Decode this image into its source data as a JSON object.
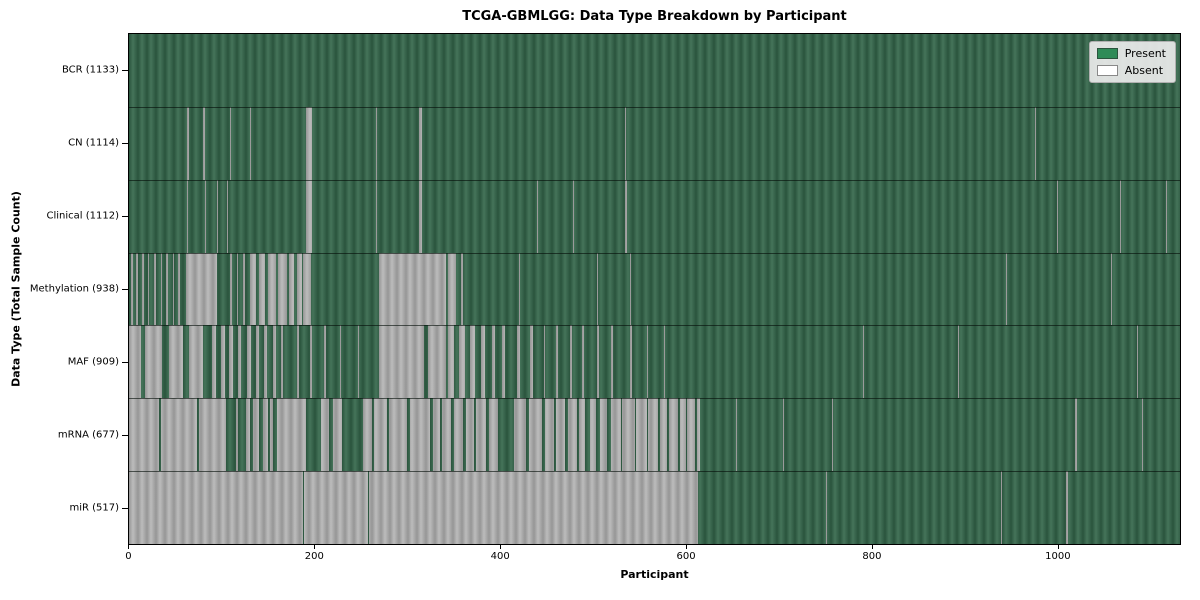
{
  "chart_data": {
    "type": "heatmap",
    "title": "TCGA-GBMLGG: Data Type Breakdown by Participant",
    "xlabel": "Participant",
    "ylabel": "Data Type (Total Sample Count)",
    "n_participants": 1133,
    "x_ticks": [
      0,
      200,
      400,
      600,
      800,
      1000
    ],
    "legend": [
      {
        "label": "Present",
        "color": "#2e8b57"
      },
      {
        "label": "Absent",
        "color": "#ffffff"
      }
    ],
    "colors": {
      "present": "#2e8b57",
      "absent": "#ffffff",
      "present_stripe_dark": "#2a543d",
      "present_stripe_light": "#45745a",
      "absent_stripe_dark": "#969696",
      "absent_stripe_light": "#bcbcbc"
    },
    "rows": [
      {
        "name": "BCR",
        "label": "BCR (1133)",
        "count": 1133,
        "runs": []
      },
      {
        "name": "CN",
        "label": "CN (1114)",
        "count": 1114,
        "runs": [
          [
            63,
            65,
            "A"
          ],
          [
            80,
            82,
            "A"
          ],
          [
            109,
            110,
            "A"
          ],
          [
            130,
            131,
            "A"
          ],
          [
            191,
            197,
            "A"
          ],
          [
            266,
            267,
            "A"
          ],
          [
            313,
            316,
            "A"
          ],
          [
            535,
            536,
            "A"
          ],
          [
            977,
            978,
            "A"
          ],
          [
            1056,
            1057,
            "A"
          ]
        ]
      },
      {
        "name": "Clinical",
        "label": "Clinical (1112)",
        "count": 1112,
        "runs": [
          [
            63,
            64,
            "A"
          ],
          [
            82,
            83,
            "A"
          ],
          [
            95,
            96,
            "A"
          ],
          [
            106,
            107,
            "A"
          ],
          [
            191,
            197,
            "A"
          ],
          [
            266,
            267,
            "A"
          ],
          [
            313,
            316,
            "A"
          ],
          [
            440,
            441,
            "A"
          ],
          [
            479,
            480,
            "A"
          ],
          [
            535,
            537,
            "A"
          ],
          [
            1000,
            1001,
            "A"
          ],
          [
            1068,
            1069,
            "A"
          ],
          [
            1118,
            1119,
            "A"
          ]
        ]
      },
      {
        "name": "Methylation",
        "label": "Methylation (938)",
        "count": 938,
        "runs": [
          [
            2,
            4,
            "A"
          ],
          [
            8,
            10,
            "A"
          ],
          [
            14,
            16,
            "A"
          ],
          [
            20,
            22,
            "A"
          ],
          [
            27,
            29,
            "A"
          ],
          [
            34,
            36,
            "A"
          ],
          [
            40,
            42,
            "A"
          ],
          [
            47,
            49,
            "A"
          ],
          [
            53,
            55,
            "A"
          ],
          [
            61,
            95,
            "A"
          ],
          [
            109,
            111,
            "A"
          ],
          [
            116,
            118,
            "A"
          ],
          [
            123,
            125,
            "A"
          ],
          [
            130,
            137,
            "A"
          ],
          [
            140,
            147,
            "A"
          ],
          [
            150,
            158,
            "A"
          ],
          [
            161,
            170,
            "A"
          ],
          [
            173,
            178,
            "A"
          ],
          [
            181,
            186,
            "A"
          ],
          [
            188,
            196,
            "A"
          ],
          [
            270,
            342,
            "A"
          ],
          [
            344,
            352,
            "A"
          ],
          [
            358,
            360,
            "A"
          ],
          [
            420,
            421,
            "A"
          ],
          [
            505,
            506,
            "A"
          ],
          [
            540,
            541,
            "A"
          ],
          [
            945,
            947,
            "A"
          ],
          [
            1059,
            1060,
            "A"
          ]
        ]
      },
      {
        "name": "MAF",
        "label": "MAF (909)",
        "count": 909,
        "runs": [
          [
            0,
            13,
            "A"
          ],
          [
            17,
            36,
            "A"
          ],
          [
            43,
            58,
            "A"
          ],
          [
            65,
            80,
            "A"
          ],
          [
            90,
            94,
            "A"
          ],
          [
            99,
            103,
            "A"
          ],
          [
            108,
            112,
            "A"
          ],
          [
            118,
            121,
            "A"
          ],
          [
            127,
            131,
            "A"
          ],
          [
            137,
            140,
            "A"
          ],
          [
            146,
            149,
            "A"
          ],
          [
            155,
            158,
            "A"
          ],
          [
            164,
            166,
            "A"
          ],
          [
            181,
            183,
            "A"
          ],
          [
            195,
            197,
            "A"
          ],
          [
            210,
            212,
            "A"
          ],
          [
            228,
            229,
            "A"
          ],
          [
            247,
            248,
            "A"
          ],
          [
            270,
            318,
            "A"
          ],
          [
            322,
            342,
            "A"
          ],
          [
            344,
            350,
            "A"
          ],
          [
            356,
            362,
            "A"
          ],
          [
            368,
            373,
            "A"
          ],
          [
            380,
            384,
            "A"
          ],
          [
            391,
            395,
            "A"
          ],
          [
            402,
            405,
            "A"
          ],
          [
            418,
            421,
            "A"
          ],
          [
            432,
            435,
            "A"
          ],
          [
            447,
            449,
            "A"
          ],
          [
            460,
            462,
            "A"
          ],
          [
            475,
            478,
            "A"
          ],
          [
            488,
            490,
            "A"
          ],
          [
            505,
            507,
            "A"
          ],
          [
            520,
            522,
            "A"
          ],
          [
            540,
            542,
            "A"
          ],
          [
            558,
            560,
            "A"
          ],
          [
            577,
            578,
            "A"
          ],
          [
            600,
            601,
            "A"
          ],
          [
            791,
            792,
            "A"
          ],
          [
            894,
            895,
            "A"
          ],
          [
            1087,
            1088,
            "A"
          ]
        ]
      },
      {
        "name": "mRNA",
        "label": "mRNA (677)",
        "count": 677,
        "runs": [
          [
            0,
            616,
            "A"
          ],
          [
            32,
            34,
            "P"
          ],
          [
            73,
            75,
            "P"
          ],
          [
            105,
            115,
            "P"
          ],
          [
            118,
            126,
            "P"
          ],
          [
            130,
            134,
            "P"
          ],
          [
            140,
            144,
            "P"
          ],
          [
            150,
            152,
            "P"
          ],
          [
            155,
            160,
            "P"
          ],
          [
            191,
            207,
            "P"
          ],
          [
            216,
            220,
            "P"
          ],
          [
            230,
            252,
            "P"
          ],
          [
            262,
            264,
            "P"
          ],
          [
            278,
            280,
            "P"
          ],
          [
            300,
            303,
            "P"
          ],
          [
            325,
            328,
            "P"
          ],
          [
            335,
            337,
            "P"
          ],
          [
            347,
            350,
            "P"
          ],
          [
            360,
            363,
            "P"
          ],
          [
            372,
            374,
            "P"
          ],
          [
            385,
            388,
            "P"
          ],
          [
            398,
            415,
            "P"
          ],
          [
            428,
            431,
            "P"
          ],
          [
            445,
            448,
            "P"
          ],
          [
            458,
            460,
            "P"
          ],
          [
            470,
            473,
            "P"
          ],
          [
            483,
            485,
            "P"
          ],
          [
            492,
            497,
            "P"
          ],
          [
            503,
            508,
            "P"
          ],
          [
            515,
            520,
            "P"
          ],
          [
            530,
            532,
            "P"
          ],
          [
            545,
            547,
            "P"
          ],
          [
            558,
            560,
            "P"
          ],
          [
            570,
            572,
            "P"
          ],
          [
            580,
            582,
            "P"
          ],
          [
            592,
            594,
            "P"
          ],
          [
            600,
            602,
            "P"
          ],
          [
            610,
            612,
            "P"
          ],
          [
            654,
            655,
            "A"
          ],
          [
            705,
            706,
            "A"
          ],
          [
            758,
            759,
            "A"
          ],
          [
            905,
            906,
            "A"
          ],
          [
            1020,
            1022,
            "A"
          ],
          [
            1092,
            1093,
            "A"
          ]
        ]
      },
      {
        "name": "miR",
        "label": "miR (517)",
        "count": 517,
        "runs": [
          [
            0,
            613,
            "A"
          ],
          [
            188,
            189,
            "P"
          ],
          [
            258,
            259,
            "P"
          ],
          [
            697,
            698,
            "A"
          ],
          [
            751,
            752,
            "A"
          ],
          [
            940,
            941,
            "A"
          ],
          [
            1010,
            1012,
            "A"
          ]
        ]
      }
    ]
  }
}
